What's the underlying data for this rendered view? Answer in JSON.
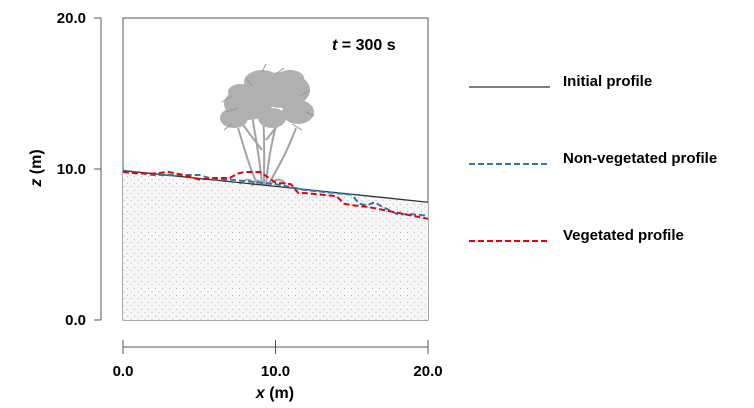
{
  "chart_data": {
    "type": "line",
    "annotation": {
      "var": "t",
      "rest": " = 300 s"
    },
    "xlabel": {
      "var": "x",
      "unit": " (m)"
    },
    "ylabel": {
      "var": "z",
      "unit": " (m)"
    },
    "xlim": [
      0,
      20
    ],
    "ylim": [
      0,
      20
    ],
    "xticks": [
      0,
      10,
      20
    ],
    "yticks": [
      0,
      10,
      20
    ],
    "xtick_labels": [
      "0.0",
      "10.0",
      "20.0"
    ],
    "ytick_labels": [
      "0.0",
      "10.0",
      "20.0"
    ],
    "grid": false,
    "legend_position": "right",
    "series": [
      {
        "name": "Initial profile",
        "color": "#333333",
        "dash": "solid",
        "x": [
          0,
          20
        ],
        "y": [
          9.9,
          7.8
        ]
      },
      {
        "name": "Non-vegetated profile",
        "color": "#2e75b6",
        "dash": "dashed",
        "x": [
          0,
          2,
          4,
          5,
          6,
          7,
          8,
          9,
          10,
          11,
          12,
          13,
          14,
          15,
          15.5,
          16,
          16.5,
          17,
          18,
          19,
          20
        ],
        "y": [
          9.9,
          9.6,
          9.6,
          9.6,
          9.3,
          9.3,
          9.2,
          9.1,
          9.0,
          8.8,
          8.6,
          8.5,
          8.4,
          8.3,
          7.7,
          7.6,
          7.8,
          7.5,
          7.0,
          7.0,
          6.9
        ]
      },
      {
        "name": "Vegetated profile",
        "color": "#e8000b",
        "dash": "dashed",
        "x": [
          0,
          1,
          2,
          3,
          4,
          5,
          6,
          7,
          7.5,
          8,
          9,
          10,
          11,
          11.5,
          12,
          13,
          14,
          14.5,
          15,
          16,
          17,
          18,
          19,
          20
        ],
        "y": [
          9.8,
          9.7,
          9.7,
          9.8,
          9.6,
          9.3,
          9.4,
          9.4,
          9.7,
          9.8,
          9.8,
          9.1,
          9.0,
          8.4,
          8.4,
          8.3,
          8.2,
          7.7,
          7.6,
          7.5,
          7.3,
          7.1,
          6.9,
          6.7
        ]
      }
    ]
  }
}
